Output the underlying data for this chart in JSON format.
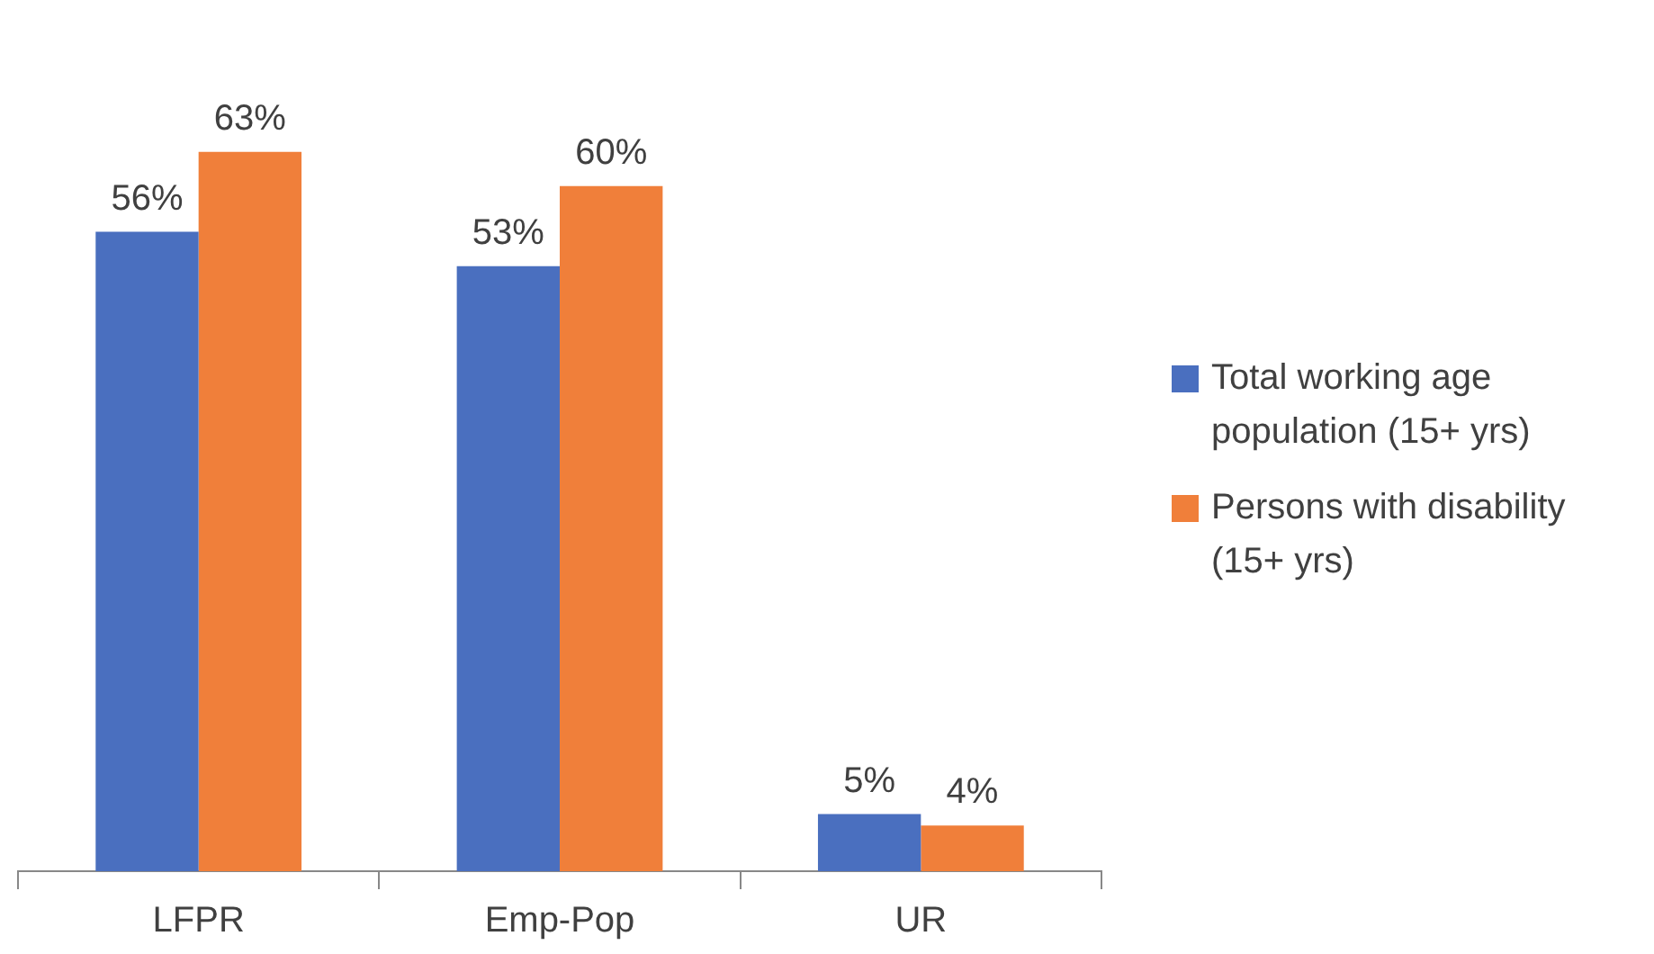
{
  "chart_data": {
    "type": "bar",
    "categories": [
      "LFPR",
      "Emp-Pop",
      "UR"
    ],
    "legend": "right",
    "series": [
      {
        "name": "Total working age population (15+ yrs)",
        "color": "#4a6fbf",
        "values": [
          56,
          53,
          5
        ],
        "value_labels": [
          "56%",
          "53%",
          "5%"
        ]
      },
      {
        "name": "Persons with disability (15+ yrs)",
        "color": "#f07f3a",
        "values": [
          63,
          60,
          4
        ],
        "value_labels": [
          "63%",
          "60%",
          "4%"
        ]
      }
    ]
  }
}
